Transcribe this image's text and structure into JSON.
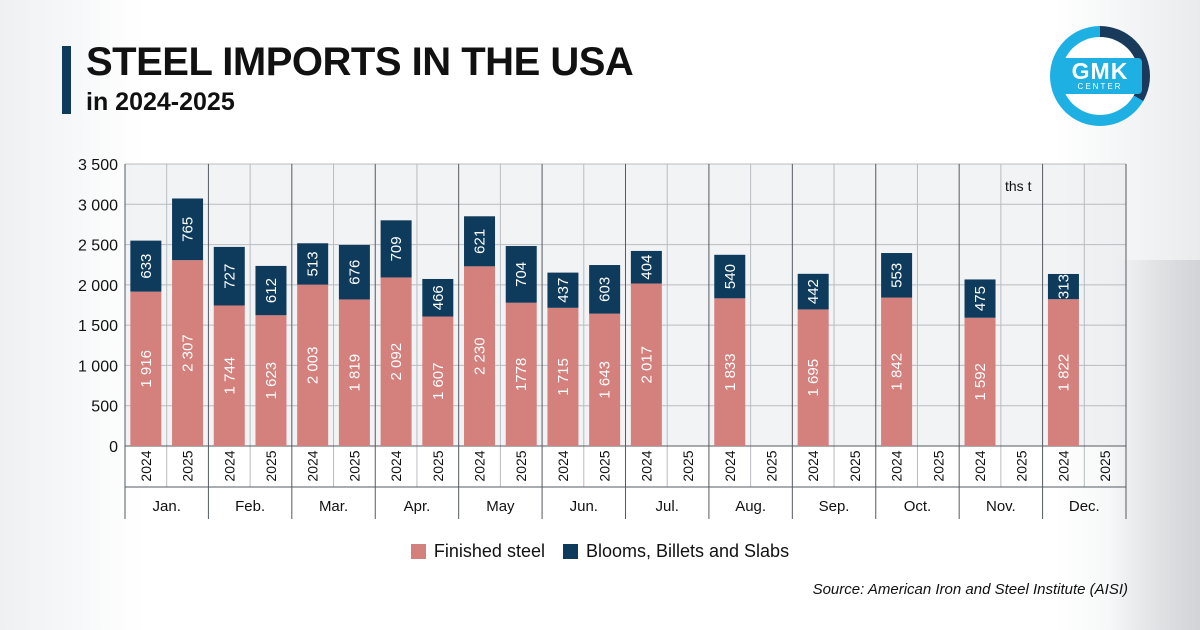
{
  "header": {
    "title": "STEEL IMPORTS IN THE USA",
    "subtitle": "in 2024-2025"
  },
  "logo": {
    "text": "GMK",
    "subtext": "CENTER"
  },
  "colors": {
    "finished": "#d4807c",
    "blooms": "#0e3a5c",
    "grid": "#b8bcc0",
    "accent": "#1fb0e3"
  },
  "chart_data": {
    "type": "bar",
    "stacked": true,
    "unit_label": "ths t",
    "ylim": [
      0,
      3500
    ],
    "yticks": [
      0,
      500,
      1000,
      1500,
      2000,
      2500,
      3000,
      3500
    ],
    "ytick_labels": [
      "0",
      "500",
      "1 000",
      "1 500",
      "2 000",
      "2 500",
      "3 000",
      "3 500"
    ],
    "months": [
      "Jan.",
      "Feb.",
      "Mar.",
      "Apr.",
      "May",
      "Jun.",
      "Jul.",
      "Aug.",
      "Sep.",
      "Oct.",
      "Nov.",
      "Dec."
    ],
    "years": [
      "2024",
      "2025"
    ],
    "series": [
      {
        "name": "Finished steel",
        "values_2024": [
          1916,
          1744,
          2003,
          2092,
          2230,
          1715,
          2017,
          1833,
          1695,
          1842,
          1592,
          1822
        ],
        "labels_2024": [
          "1 916",
          "1 744",
          "2 003",
          "2 092",
          "2 230",
          "1 715",
          "2 017",
          "1 833",
          "1 695",
          "1 842",
          "1 592",
          "1 822"
        ],
        "values_2025": [
          2307,
          1623,
          1819,
          1607,
          1778,
          1643,
          null,
          null,
          null,
          null,
          null,
          null
        ],
        "labels_2025": [
          "2 307",
          "1 623",
          "1 819",
          "1 607",
          "1778",
          "1 643",
          null,
          null,
          null,
          null,
          null,
          null
        ]
      },
      {
        "name": "Blooms, Billets and Slabs",
        "values_2024": [
          633,
          727,
          513,
          709,
          621,
          437,
          404,
          540,
          442,
          553,
          475,
          313
        ],
        "labels_2024": [
          "633",
          "727",
          "513",
          "709",
          "621",
          "437",
          "404",
          "540",
          "442",
          "553",
          "475",
          "313"
        ],
        "values_2025": [
          765,
          612,
          676,
          466,
          704,
          603,
          null,
          null,
          null,
          null,
          null,
          null
        ],
        "labels_2025": [
          "765",
          "612",
          "676",
          "466",
          "704",
          "603",
          null,
          null,
          null,
          null,
          null,
          null
        ]
      }
    ],
    "legend": [
      "Finished steel",
      "Blooms, Billets and Slabs"
    ],
    "legend_position": "bottom"
  },
  "source": "Source: American Iron and Steel Institute (AISI)"
}
